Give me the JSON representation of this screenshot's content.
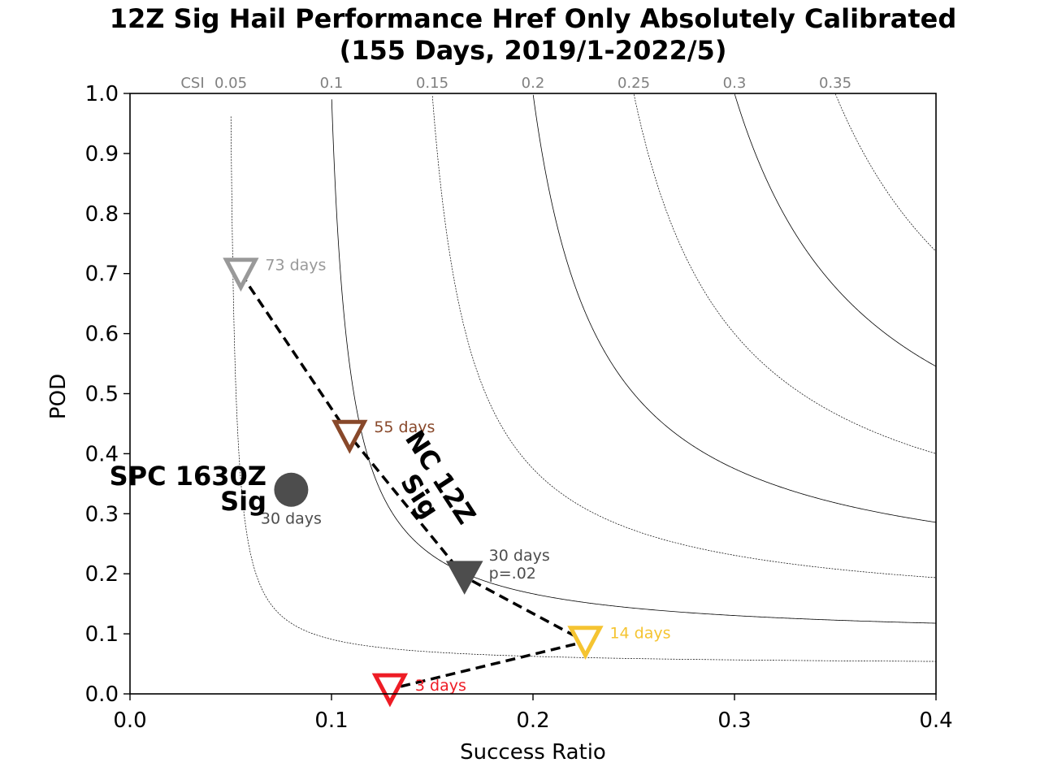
{
  "chart_data": {
    "type": "scatter",
    "title": "12Z Sig Hail Performance Href Only Absolutely Calibrated",
    "subtitle": "(155 Days, 2019/1-2022/5)",
    "xlabel": "Success Ratio",
    "ylabel": "POD",
    "xlim": [
      0.0,
      0.4
    ],
    "ylim": [
      0.0,
      1.0
    ],
    "x_ticks": [
      "0.0",
      "0.1",
      "0.2",
      "0.3",
      "0.4"
    ],
    "y_ticks": [
      "0.0",
      "0.1",
      "0.2",
      "0.3",
      "0.4",
      "0.5",
      "0.6",
      "0.7",
      "0.8",
      "0.9",
      "1.0"
    ],
    "csi_label": "CSI",
    "csi_ticks": [
      "0.05",
      "0.1",
      "0.15",
      "0.2",
      "0.25",
      "0.3",
      "0.35"
    ],
    "csi_values": [
      0.05,
      0.1,
      0.15,
      0.2,
      0.25,
      0.3,
      0.35
    ],
    "grid": false,
    "series": [
      {
        "name": "NC 12Z Sig",
        "line_style": "dashed",
        "line_color": "#000000",
        "points": [
          {
            "x": 0.055,
            "y": 0.7,
            "marker": "triangle-down-open",
            "color": "#999999",
            "label": "73 days"
          },
          {
            "x": 0.109,
            "y": 0.43,
            "marker": "triangle-down-open",
            "color": "#88482a",
            "label": "55 days"
          },
          {
            "x": 0.166,
            "y": 0.195,
            "marker": "triangle-down-filled",
            "color": "#4d4d4d",
            "label": "30 days",
            "label2": "p=.02"
          },
          {
            "x": 0.226,
            "y": 0.087,
            "marker": "triangle-down-open",
            "color": "#f5c431",
            "label": "14 days"
          },
          {
            "x": 0.129,
            "y": 0.008,
            "marker": "triangle-down-open",
            "color": "#ee1c25",
            "label": "3 days"
          }
        ]
      },
      {
        "name": "SPC 1630Z Sig",
        "points": [
          {
            "x": 0.08,
            "y": 0.34,
            "marker": "circle-filled",
            "color": "#4d4d4d",
            "label": "30 days"
          }
        ]
      }
    ],
    "annotations": {
      "nc_label_line1": "NC 12Z",
      "nc_label_line2": "Sig",
      "spc_label_line1": "SPC 1630Z",
      "spc_label_line2": "Sig"
    }
  }
}
